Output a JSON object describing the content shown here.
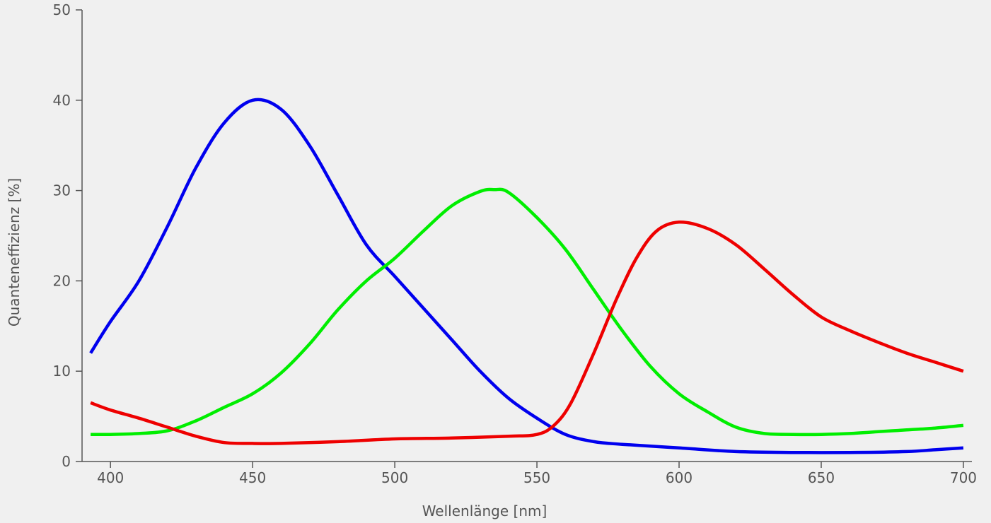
{
  "chart_data": {
    "type": "line",
    "xlabel": "Wellenlänge [nm]",
    "ylabel": "Quanteneffizienz [%]",
    "xlim": [
      390,
      703
    ],
    "ylim": [
      0,
      50
    ],
    "x_ticks": [
      "400",
      "450",
      "500",
      "550",
      "600",
      "650",
      "700"
    ],
    "y_ticks": [
      "0",
      "10",
      "20",
      "30",
      "40",
      "50"
    ],
    "grid": false,
    "legend": "none",
    "series": [
      {
        "color": "#0000ee",
        "points": [
          [
            393,
            12
          ],
          [
            400,
            15.5
          ],
          [
            410,
            20
          ],
          [
            420,
            26
          ],
          [
            430,
            32.5
          ],
          [
            440,
            37.5
          ],
          [
            450,
            40
          ],
          [
            460,
            39
          ],
          [
            470,
            35
          ],
          [
            480,
            29.5
          ],
          [
            490,
            24
          ],
          [
            500,
            20.5
          ],
          [
            510,
            17
          ],
          [
            520,
            13.5
          ],
          [
            530,
            10
          ],
          [
            540,
            7
          ],
          [
            550,
            4.8
          ],
          [
            560,
            3
          ],
          [
            570,
            2.2
          ],
          [
            580,
            1.9
          ],
          [
            600,
            1.5
          ],
          [
            620,
            1.1
          ],
          [
            640,
            1.0
          ],
          [
            660,
            1.0
          ],
          [
            680,
            1.1
          ],
          [
            690,
            1.3
          ],
          [
            700,
            1.5
          ]
        ]
      },
      {
        "color": "#00ee00",
        "points": [
          [
            393,
            3
          ],
          [
            400,
            3
          ],
          [
            410,
            3.1
          ],
          [
            420,
            3.4
          ],
          [
            430,
            4.5
          ],
          [
            440,
            6
          ],
          [
            450,
            7.5
          ],
          [
            460,
            9.8
          ],
          [
            470,
            13
          ],
          [
            480,
            16.8
          ],
          [
            490,
            20
          ],
          [
            500,
            22.5
          ],
          [
            510,
            25.5
          ],
          [
            520,
            28.3
          ],
          [
            530,
            29.9
          ],
          [
            535,
            30.1
          ],
          [
            540,
            29.8
          ],
          [
            550,
            27
          ],
          [
            560,
            23.5
          ],
          [
            570,
            19
          ],
          [
            580,
            14.5
          ],
          [
            590,
            10.5
          ],
          [
            600,
            7.5
          ],
          [
            610,
            5.5
          ],
          [
            620,
            3.8
          ],
          [
            630,
            3.1
          ],
          [
            640,
            3.0
          ],
          [
            650,
            3.0
          ],
          [
            660,
            3.1
          ],
          [
            670,
            3.3
          ],
          [
            680,
            3.5
          ],
          [
            690,
            3.7
          ],
          [
            700,
            4.0
          ]
        ]
      },
      {
        "color": "#ee0000",
        "points": [
          [
            393,
            6.5
          ],
          [
            400,
            5.7
          ],
          [
            410,
            4.8
          ],
          [
            420,
            3.8
          ],
          [
            430,
            2.8
          ],
          [
            440,
            2.1
          ],
          [
            450,
            2.0
          ],
          [
            460,
            2.0
          ],
          [
            480,
            2.2
          ],
          [
            500,
            2.5
          ],
          [
            520,
            2.6
          ],
          [
            540,
            2.8
          ],
          [
            550,
            3.0
          ],
          [
            556,
            4.0
          ],
          [
            562,
            6.5
          ],
          [
            570,
            12
          ],
          [
            578,
            18
          ],
          [
            585,
            22.5
          ],
          [
            592,
            25.5
          ],
          [
            600,
            26.5
          ],
          [
            610,
            25.8
          ],
          [
            620,
            24
          ],
          [
            630,
            21.3
          ],
          [
            640,
            18.5
          ],
          [
            650,
            16
          ],
          [
            660,
            14.5
          ],
          [
            670,
            13.2
          ],
          [
            680,
            12
          ],
          [
            690,
            11
          ],
          [
            700,
            10
          ]
        ]
      }
    ]
  }
}
